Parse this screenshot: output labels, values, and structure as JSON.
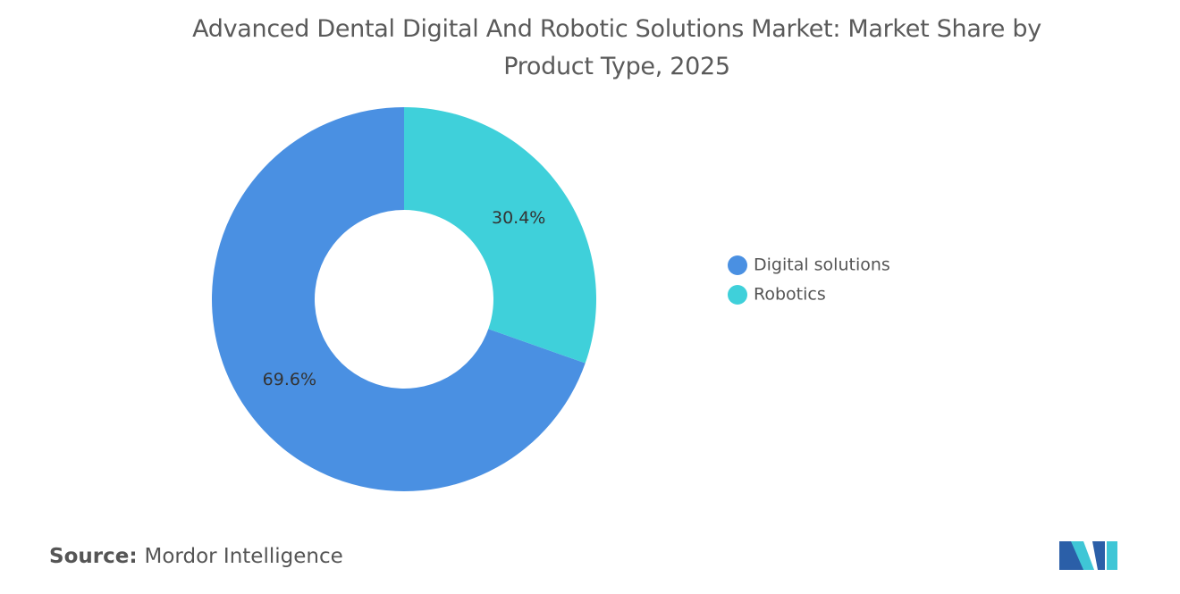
{
  "chart_data": {
    "type": "donut",
    "title": "Advanced Dental Digital And Robotic Solutions Market: Market Share by Product Type, 2025",
    "series": [
      {
        "name": "Digital solutions",
        "color": "#4a90e2",
        "values": [
          69.6
        ],
        "value_labels": [
          "69.6%"
        ]
      },
      {
        "name": "Robotics",
        "color": "#3fd0da",
        "values": [
          30.4
        ],
        "value_labels": [
          "30.4%"
        ]
      }
    ],
    "legend": "right"
  },
  "source": {
    "label": "Source:",
    "text": "Mordor Intelligence"
  }
}
